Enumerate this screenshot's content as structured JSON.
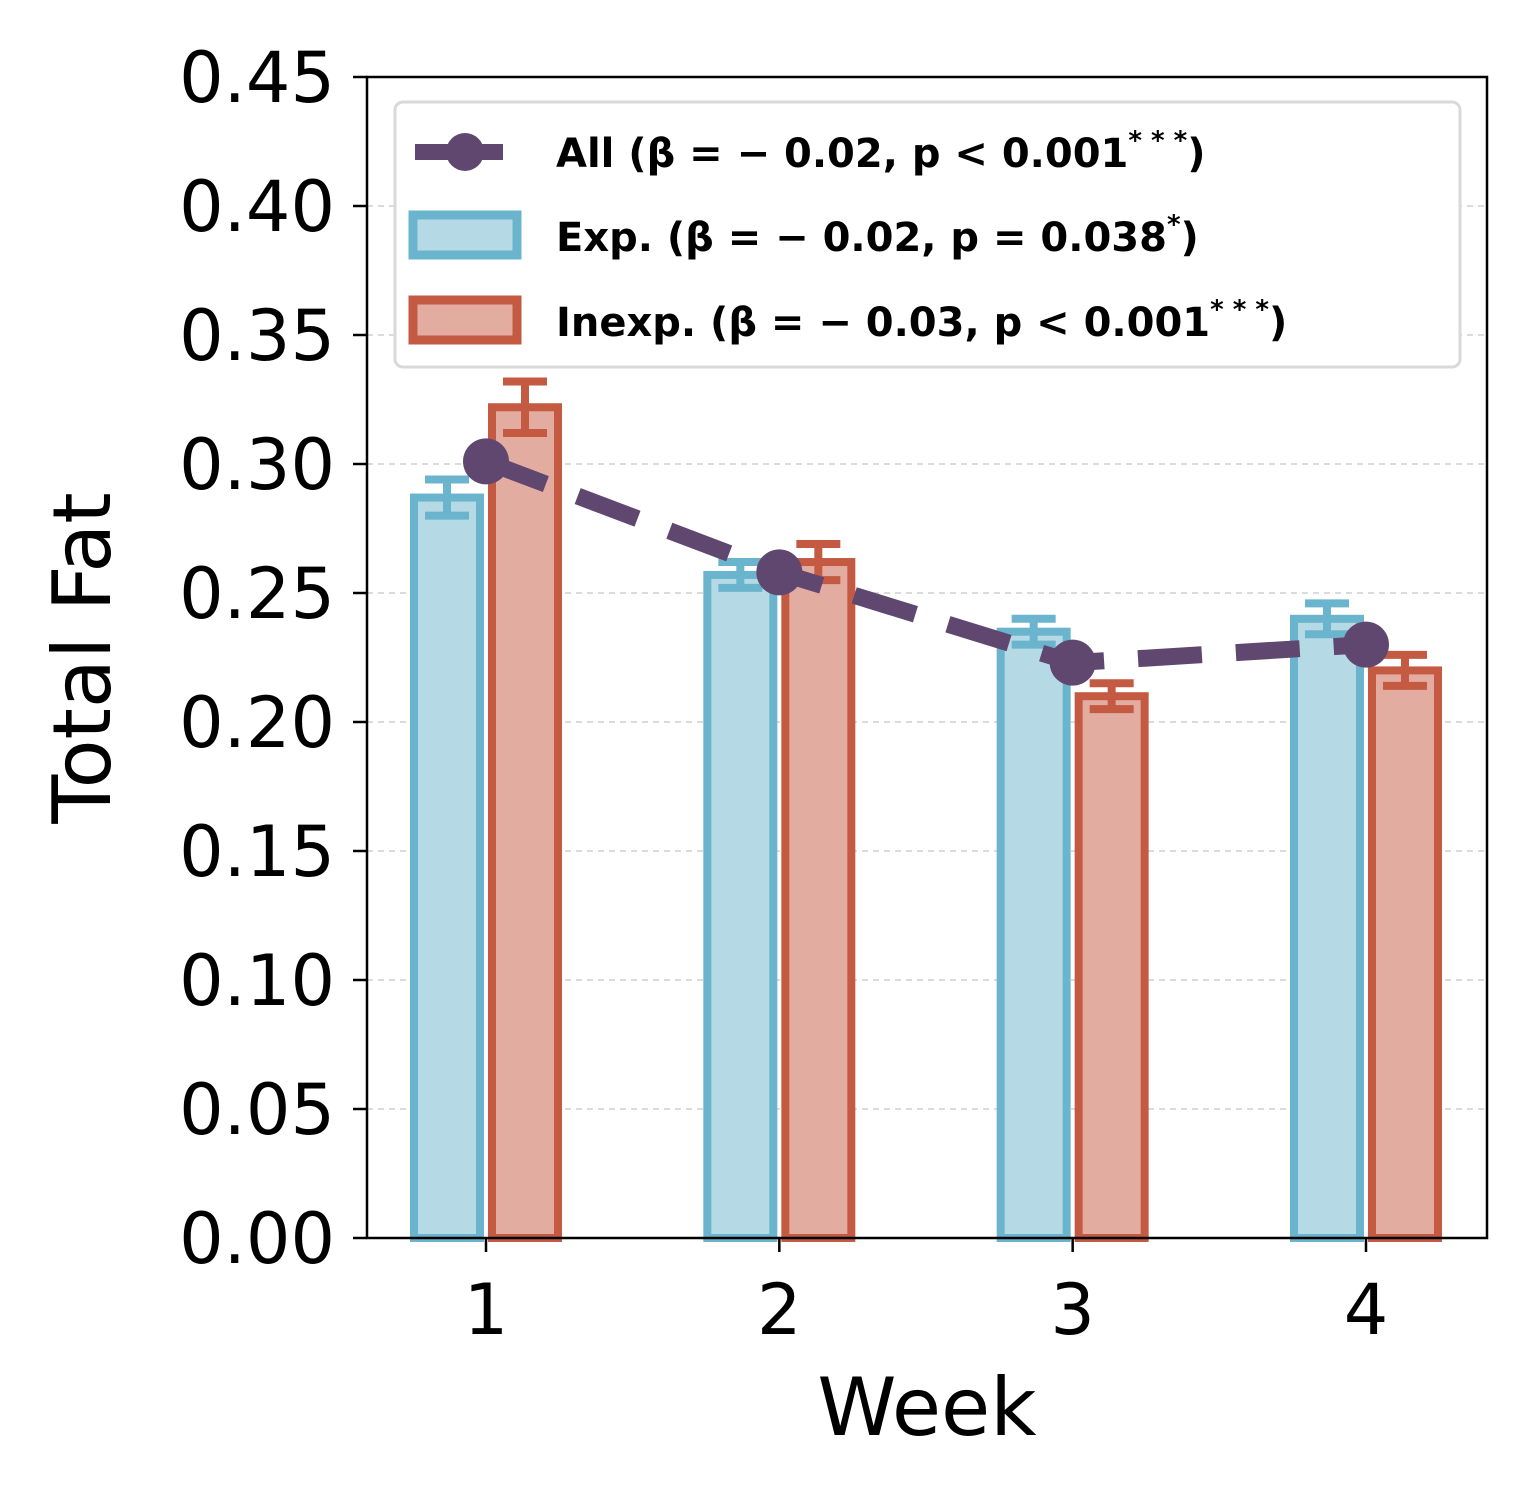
{
  "chart_data": {
    "type": "bar",
    "title": "",
    "xlabel": "Week",
    "ylabel": "Total Fat",
    "categories": [
      "1",
      "2",
      "3",
      "4"
    ],
    "ylim": [
      0,
      0.45
    ],
    "yticks": [
      "0.00",
      "0.05",
      "0.10",
      "0.15",
      "0.20",
      "0.25",
      "0.30",
      "0.35",
      "0.40",
      "0.45"
    ],
    "grid": "horizontal dashed",
    "legend_position": "top",
    "series": [
      {
        "name": "Exp.",
        "kind": "bar",
        "values": [
          0.287,
          0.257,
          0.235,
          0.24
        ],
        "errors": [
          0.007,
          0.005,
          0.005,
          0.006
        ],
        "fill": "#b6dae5",
        "edge": "#6ab4cd",
        "legend": {
          "label": "Exp. (β = − 0.02, p = 0.038",
          "sup": "*",
          "close": ")"
        }
      },
      {
        "name": "Inexp.",
        "kind": "bar",
        "values": [
          0.322,
          0.262,
          0.21,
          0.22
        ],
        "errors": [
          0.01,
          0.007,
          0.005,
          0.006
        ],
        "fill": "#e2aca1",
        "edge": "#c55a43",
        "legend": {
          "label": "Inexp. (β = − 0.03, p < 0.001",
          "sup": "* * *",
          "close": ")"
        }
      },
      {
        "name": "All",
        "kind": "line",
        "values": [
          0.301,
          0.258,
          0.223,
          0.23
        ],
        "color": "#604770",
        "legend": {
          "label": "All (β = − 0.02, p < 0.001",
          "sup": "* * *",
          "close": ")"
        }
      }
    ]
  }
}
